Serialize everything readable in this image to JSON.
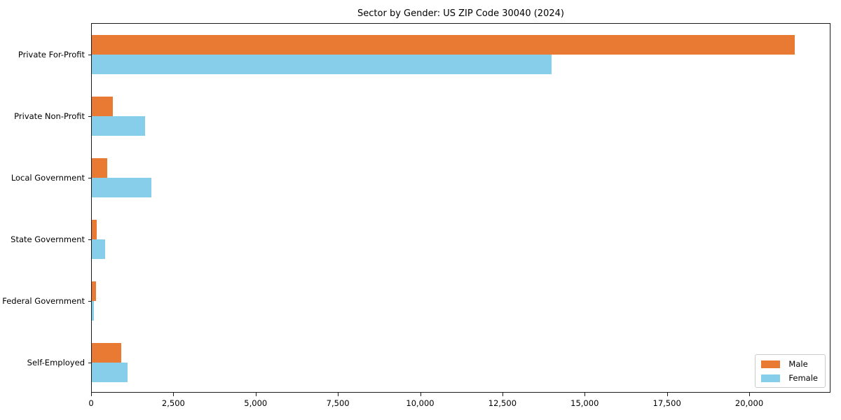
{
  "chart_data": {
    "type": "bar",
    "orientation": "horizontal",
    "title": "Sector by Gender: US ZIP Code 30040 (2024)",
    "categories": [
      "Private For-Profit",
      "Private Non-Profit",
      "Local Government",
      "State Government",
      "Federal Government",
      "Self-Employed"
    ],
    "series": [
      {
        "name": "Male",
        "color": "#E87A33",
        "values": [
          21400,
          640,
          480,
          160,
          130,
          900
        ]
      },
      {
        "name": "Female",
        "color": "#87CEEB",
        "values": [
          14000,
          1620,
          1820,
          410,
          70,
          1090
        ]
      }
    ],
    "xlim": [
      0,
      22470
    ],
    "xtick_values": [
      0,
      2500,
      5000,
      7500,
      10000,
      12500,
      15000,
      17500,
      20000
    ],
    "xtick_labels": [
      "0",
      "2,500",
      "5,000",
      "7,500",
      "10,000",
      "12,500",
      "15,000",
      "17,500",
      "20,000"
    ],
    "grid": false,
    "legend_position": "lower right",
    "xlabel": "",
    "ylabel": ""
  },
  "colors": {
    "axis": "#1a1a1a",
    "legend_border": "#cccccc",
    "background": "#ffffff"
  }
}
